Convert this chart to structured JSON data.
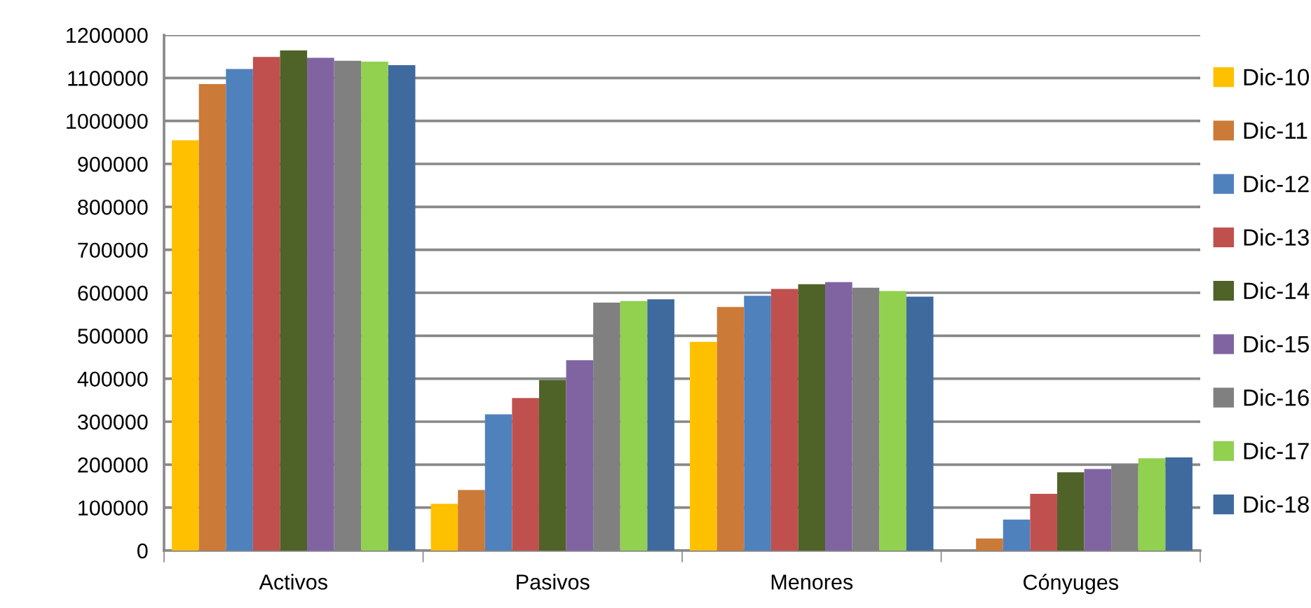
{
  "chart_data": {
    "type": "bar",
    "categories": [
      "Activos",
      "Pasivos",
      "Menores",
      "Cónyuges"
    ],
    "series": [
      {
        "name": "Dic-10",
        "color": "#ffc000",
        "values": [
          955000,
          109000,
          486000,
          0
        ]
      },
      {
        "name": "Dic-11",
        "color": "#cc7a37",
        "values": [
          1086000,
          141000,
          567000,
          28000
        ]
      },
      {
        "name": "Dic-12",
        "color": "#4f81bd",
        "values": [
          1121000,
          317000,
          593000,
          72000
        ]
      },
      {
        "name": "Dic-13",
        "color": "#c0504d",
        "values": [
          1149000,
          355000,
          609000,
          132000
        ]
      },
      {
        "name": "Dic-14",
        "color": "#4f6228",
        "values": [
          1164000,
          397000,
          620000,
          182000
        ]
      },
      {
        "name": "Dic-15",
        "color": "#8064a2",
        "values": [
          1147000,
          443000,
          625000,
          190000
        ]
      },
      {
        "name": "Dic-16",
        "color": "#808080",
        "values": [
          1140000,
          577000,
          612000,
          201000
        ]
      },
      {
        "name": "Dic-17",
        "color": "#92d050",
        "values": [
          1138000,
          581000,
          604000,
          215000
        ]
      },
      {
        "name": "Dic-18",
        "color": "#3e6a9e",
        "values": [
          1130000,
          585000,
          591000,
          217000
        ]
      }
    ],
    "ylim": [
      0,
      1200000
    ],
    "yticks": [
      0,
      100000,
      200000,
      300000,
      400000,
      500000,
      600000,
      700000,
      800000,
      900000,
      1000000,
      1100000,
      1200000
    ],
    "grid": "y",
    "legend": "right"
  }
}
